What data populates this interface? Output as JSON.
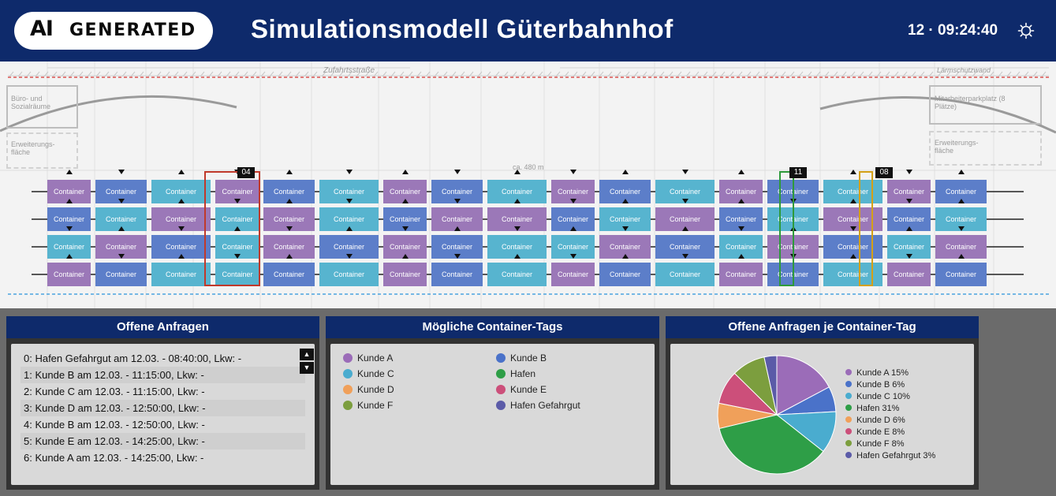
{
  "header": {
    "logo_ai": "AI",
    "logo_text": "GENERATED",
    "title": "Simulationsmodell Güterbahnhof",
    "clock": "12 · 09:24:40",
    "settings_icon": "gear-icon"
  },
  "yard": {
    "road_label": "Zufahrtsstraße",
    "wall_label": "Lärmschutzwand",
    "office_label": "Büro- und Sozialräume",
    "office_ext_label": "Erweiterungs-fläche",
    "parking_label": "Mitarbeiterparkplatz (8 Plätze)",
    "parking_ext_label": "Erweiterungs-fläche",
    "length_label": "ca. 480 m",
    "container_label": "Container",
    "cranes": [
      {
        "id": "04",
        "color": "#c0392b"
      },
      {
        "id": "11",
        "color": "#2e9a3a"
      },
      {
        "id": "08",
        "color": "#d4a017"
      }
    ]
  },
  "requests": {
    "title": "Offene Anfragen",
    "items": [
      "0: Hafen Gefahrgut am 12.03. - 08:40:00, Lkw: -",
      "1: Kunde B am 12.03. - 11:15:00, Lkw: -",
      "2: Kunde C am 12.03. - 11:15:00, Lkw: -",
      "3: Kunde D am 12.03. - 12:50:00, Lkw: -",
      "4: Kunde B am 12.03. - 12:50:00, Lkw: -",
      "5: Kunde E am 12.03. - 14:25:00, Lkw: -",
      "6: Kunde A am 12.03. - 14:25:00, Lkw: -"
    ],
    "scroll_up": "▲",
    "scroll_down": "▼"
  },
  "tags": {
    "title": "Mögliche Container-Tags",
    "items": [
      {
        "label": "Kunde A",
        "color": "#9b6cb8"
      },
      {
        "label": "Kunde B",
        "color": "#4a72c9"
      },
      {
        "label": "Kunde C",
        "color": "#4aaccf"
      },
      {
        "label": "Hafen",
        "color": "#2e9e47"
      },
      {
        "label": "Kunde D",
        "color": "#f0a05a"
      },
      {
        "label": "Kunde E",
        "color": "#cc4f7a"
      },
      {
        "label": "Kunde F",
        "color": "#7c9e3e"
      },
      {
        "label": "Hafen Gefahrgut",
        "color": "#5b5ba8"
      }
    ]
  },
  "pie": {
    "title": "Offene Anfragen je Container-Tag",
    "legend": [
      "Kunde A 15%",
      "Kunde B 6%",
      "Kunde C 10%",
      "Hafen 31%",
      "Kunde D 6%",
      "Kunde E 8%",
      "Kunde F 8%",
      "Hafen Gefahrgut 3%"
    ]
  },
  "chart_data": {
    "type": "pie",
    "categories": [
      "Kunde A",
      "Kunde B",
      "Kunde C",
      "Hafen",
      "Kunde D",
      "Kunde E",
      "Kunde F",
      "Hafen Gefahrgut"
    ],
    "values": [
      15,
      6,
      10,
      31,
      6,
      8,
      8,
      3
    ],
    "colors": [
      "#9b6cb8",
      "#4a72c9",
      "#4aaccf",
      "#2e9e47",
      "#f0a05a",
      "#cc4f7a",
      "#7c9e3e",
      "#5b5ba8"
    ],
    "title": "Offene Anfragen je Container-Tag",
    "legend": "right"
  }
}
